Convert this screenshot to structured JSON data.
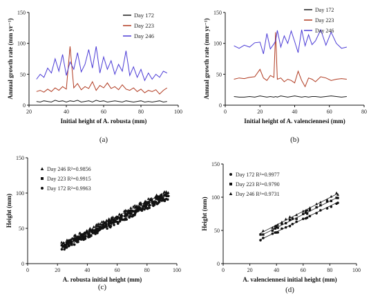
{
  "chart_data": [
    {
      "panel": "a",
      "type": "line",
      "caption": "(a)",
      "xlabel": "Initial height of A. robusta (mm)",
      "ylabel": "Annual growth rate (mm yr⁻¹)",
      "xlim": [
        20,
        100
      ],
      "ylim": [
        0,
        150
      ],
      "xticks": [
        20,
        40,
        60,
        80,
        100
      ],
      "yticks": [
        0,
        50,
        100,
        150
      ],
      "legend_position": "top-right",
      "x": [
        24,
        26,
        28,
        30,
        32,
        34,
        36,
        38,
        40,
        42,
        44,
        46,
        48,
        50,
        52,
        54,
        56,
        58,
        60,
        62,
        64,
        66,
        68,
        70,
        72,
        74,
        76,
        78,
        80,
        82,
        84,
        86,
        88,
        90,
        92,
        94
      ],
      "series": [
        {
          "name": "Day 172",
          "color": "#1a1a1a",
          "values": [
            6,
            5,
            7,
            6,
            5,
            8,
            6,
            7,
            5,
            7,
            6,
            8,
            5,
            6,
            7,
            5,
            8,
            6,
            7,
            5,
            6,
            7,
            6,
            5,
            7,
            6,
            5,
            6,
            7,
            5,
            6,
            5,
            6,
            7,
            5,
            6
          ]
        },
        {
          "name": "Day 223",
          "color": "#b0391f",
          "values": [
            22,
            24,
            21,
            26,
            22,
            28,
            24,
            30,
            26,
            95,
            28,
            35,
            25,
            30,
            27,
            38,
            24,
            32,
            28,
            36,
            27,
            30,
            25,
            33,
            26,
            24,
            28,
            22,
            26,
            20,
            24,
            22,
            25,
            18,
            24,
            28
          ]
        },
        {
          "name": "Day 246",
          "color": "#4a3ad6",
          "values": [
            42,
            50,
            45,
            60,
            52,
            75,
            55,
            82,
            48,
            70,
            58,
            85,
            54,
            66,
            90,
            60,
            95,
            52,
            78,
            58,
            72,
            50,
            66,
            55,
            88,
            48,
            62,
            45,
            58,
            40,
            52,
            42,
            50,
            45,
            55,
            52
          ]
        }
      ]
    },
    {
      "panel": "b",
      "type": "line",
      "caption": "(b)",
      "xlabel": "Initial height of A. valenciennesi (mm)",
      "ylabel": "Annual growth rate (mm yr⁻¹)",
      "xlim": [
        0,
        80
      ],
      "ylim": [
        0,
        150
      ],
      "xticks": [
        0,
        20,
        40,
        60,
        80
      ],
      "yticks": [
        0,
        50,
        100,
        150
      ],
      "legend_position": "top-right",
      "x": [
        5,
        8,
        11,
        14,
        17,
        20,
        22,
        24,
        26,
        28,
        29,
        30,
        32,
        34,
        36,
        38,
        40,
        42,
        44,
        46,
        48,
        50,
        52,
        55,
        58,
        61,
        64,
        67,
        70
      ],
      "series": [
        {
          "name": "Day 172",
          "color": "#1a1a1a",
          "values": [
            14,
            13,
            13,
            14,
            13,
            15,
            14,
            13,
            14,
            13,
            14,
            13,
            15,
            14,
            13,
            14,
            15,
            14,
            13,
            14,
            13,
            14,
            14,
            13,
            14,
            15,
            14,
            13,
            14
          ]
        },
        {
          "name": "Day 223",
          "color": "#b0391f",
          "values": [
            42,
            44,
            43,
            45,
            46,
            58,
            44,
            40,
            48,
            45,
            118,
            42,
            44,
            38,
            42,
            40,
            36,
            55,
            40,
            30,
            44,
            42,
            38,
            46,
            44,
            40,
            42,
            43,
            42
          ]
        },
        {
          "name": "Day 246",
          "color": "#4a3ad6",
          "values": [
            96,
            92,
            97,
            94,
            101,
            102,
            83,
            116,
            91,
            99,
            104,
            121,
            94,
            112,
            100,
            120,
            103,
            85,
            122,
            96,
            114,
            98,
            104,
            122,
            97,
            118,
            100,
            92,
            94
          ]
        }
      ]
    },
    {
      "panel": "c",
      "type": "scatter",
      "caption": "(c)",
      "xlabel": "A. robusta initial height (mm)",
      "ylabel": "Height (mm)",
      "xlim": [
        0,
        100
      ],
      "ylim": [
        0,
        150
      ],
      "xticks": [
        0,
        20,
        40,
        60,
        80,
        100
      ],
      "yticks": [
        0,
        50,
        100,
        150
      ],
      "legend_position": "top-left",
      "series": [
        {
          "name": "Day 246 R²=0.9856",
          "marker": "triangle",
          "slope": 1.05,
          "intercept": 4
        },
        {
          "name": "Day 223 R²=0.9915",
          "marker": "square",
          "slope": 1.04,
          "intercept": 1
        },
        {
          "name": "Day 172 R²=0.9963",
          "marker": "circle",
          "slope": 1.02,
          "intercept": -2
        }
      ],
      "x": [
        24,
        27,
        30,
        33,
        36,
        39,
        42,
        45,
        48,
        51,
        54,
        57,
        60,
        63,
        66,
        69,
        72,
        75,
        78,
        81,
        84,
        87,
        90,
        93
      ]
    },
    {
      "panel": "d",
      "type": "scatter",
      "caption": "(d)",
      "xlabel": "A. valenciennesi initial height (mm)",
      "ylabel": "Height (mm)",
      "xlim": [
        0,
        100
      ],
      "ylim": [
        0,
        150
      ],
      "xticks": [
        0,
        20,
        40,
        60,
        80,
        100
      ],
      "yticks": [
        0,
        50,
        100,
        150
      ],
      "legend_position": "top-left",
      "series": [
        {
          "name": "Day 172 R²=0.9977",
          "marker": "circle",
          "slope": 0.97,
          "intercept": 9
        },
        {
          "name": "Day 223 R²=0.9790",
          "marker": "square",
          "slope": 1.0,
          "intercept": 14
        },
        {
          "name": "Day 246 R²=0.9731",
          "marker": "triangle",
          "slope": 1.03,
          "intercept": 17
        }
      ],
      "x": [
        28,
        30,
        37,
        39,
        40,
        41,
        44,
        47,
        50,
        52,
        55,
        60,
        62,
        63,
        65,
        70,
        73,
        78,
        81,
        85,
        86
      ]
    }
  ]
}
